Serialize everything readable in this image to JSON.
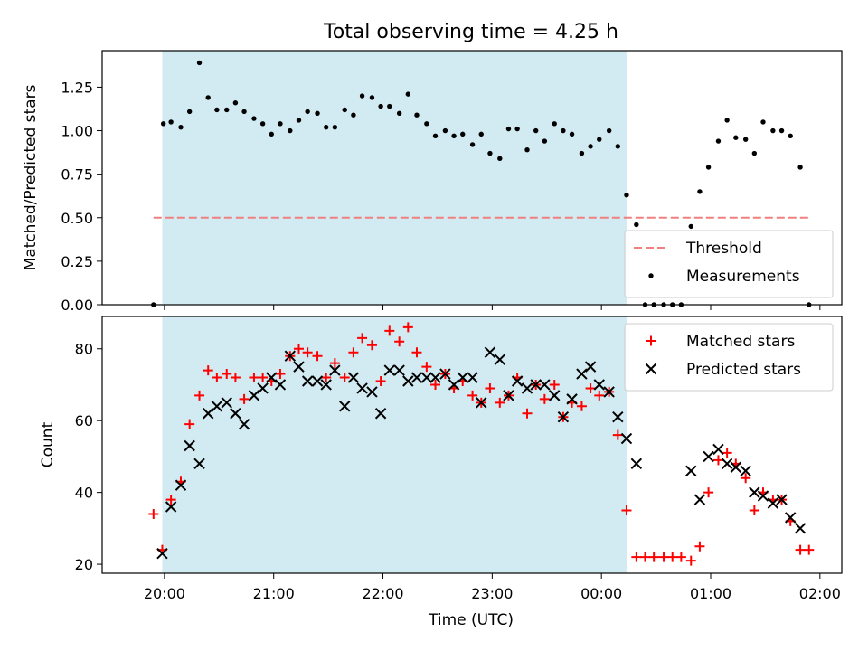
{
  "chart_data": {
    "title": "Total observing time = 4.25 h",
    "xlabel": "Time (UTC)",
    "x_unit": "hours since 00:00 UTC (values past midnight continue beyond 24)",
    "xlim": [
      19.43,
      26.2
    ],
    "xticks": [
      {
        "x": 20,
        "label": "20:00"
      },
      {
        "x": 21,
        "label": "21:00"
      },
      {
        "x": 22,
        "label": "22:00"
      },
      {
        "x": 23,
        "label": "23:00"
      },
      {
        "x": 24,
        "label": "00:00"
      },
      {
        "x": 25,
        "label": "01:00"
      },
      {
        "x": 26,
        "label": "02:00"
      }
    ],
    "shaded_interval": [
      19.98,
      24.23
    ],
    "shade_color": "#add8e6",
    "panels": [
      {
        "type": "scatter",
        "ylabel": "Matched/Predicted stars",
        "ylim": [
          0,
          1.46
        ],
        "yticks": [
          0.0,
          0.25,
          0.5,
          0.75,
          1.0,
          1.25
        ],
        "ytick_labels": [
          "0.00",
          "0.25",
          "0.50",
          "0.75",
          "1.00",
          "1.25"
        ],
        "legend_position": "lower-right",
        "series": [
          {
            "name": "Threshold",
            "kind": "dashed-line",
            "color": "#f08080",
            "x": [
              19.9,
              25.9
            ],
            "y": [
              0.5,
              0.5
            ]
          },
          {
            "name": "Measurements",
            "kind": "dot",
            "color": "#000000",
            "points": [
              [
                19.9,
                0.0
              ],
              [
                19.99,
                1.04
              ],
              [
                20.06,
                1.05
              ],
              [
                20.15,
                1.02
              ],
              [
                20.23,
                1.11
              ],
              [
                20.32,
                1.39
              ],
              [
                20.4,
                1.19
              ],
              [
                20.48,
                1.12
              ],
              [
                20.57,
                1.12
              ],
              [
                20.65,
                1.16
              ],
              [
                20.73,
                1.11
              ],
              [
                20.82,
                1.07
              ],
              [
                20.9,
                1.04
              ],
              [
                20.98,
                0.98
              ],
              [
                21.06,
                1.04
              ],
              [
                21.15,
                1.0
              ],
              [
                21.23,
                1.06
              ],
              [
                21.31,
                1.11
              ],
              [
                21.4,
                1.1
              ],
              [
                21.48,
                1.02
              ],
              [
                21.56,
                1.02
              ],
              [
                21.65,
                1.12
              ],
              [
                21.73,
                1.09
              ],
              [
                21.81,
                1.2
              ],
              [
                21.9,
                1.19
              ],
              [
                21.98,
                1.14
              ],
              [
                22.06,
                1.14
              ],
              [
                22.15,
                1.1
              ],
              [
                22.23,
                1.21
              ],
              [
                22.31,
                1.09
              ],
              [
                22.4,
                1.04
              ],
              [
                22.48,
                0.97
              ],
              [
                22.57,
                1.0
              ],
              [
                22.65,
                0.97
              ],
              [
                22.73,
                0.98
              ],
              [
                22.82,
                0.92
              ],
              [
                22.9,
                0.98
              ],
              [
                22.98,
                0.87
              ],
              [
                23.07,
                0.84
              ],
              [
                23.15,
                1.01
              ],
              [
                23.23,
                1.01
              ],
              [
                23.32,
                0.89
              ],
              [
                23.4,
                1.0
              ],
              [
                23.48,
                0.94
              ],
              [
                23.57,
                1.04
              ],
              [
                23.65,
                1.0
              ],
              [
                23.73,
                0.98
              ],
              [
                23.82,
                0.87
              ],
              [
                23.9,
                0.91
              ],
              [
                23.98,
                0.95
              ],
              [
                24.07,
                1.0
              ],
              [
                24.15,
                0.91
              ],
              [
                24.23,
                0.63
              ],
              [
                24.32,
                0.46
              ],
              [
                24.4,
                0.0
              ],
              [
                24.48,
                0.0
              ],
              [
                24.57,
                0.0
              ],
              [
                24.65,
                0.0
              ],
              [
                24.73,
                0.0
              ],
              [
                24.82,
                0.45
              ],
              [
                24.9,
                0.65
              ],
              [
                24.98,
                0.79
              ],
              [
                25.07,
                0.94
              ],
              [
                25.15,
                1.06
              ],
              [
                25.23,
                0.96
              ],
              [
                25.32,
                0.95
              ],
              [
                25.4,
                0.87
              ],
              [
                25.48,
                1.05
              ],
              [
                25.57,
                1.0
              ],
              [
                25.65,
                1.0
              ],
              [
                25.73,
                0.97
              ],
              [
                25.82,
                0.79
              ],
              [
                25.9,
                0.0
              ]
            ]
          }
        ]
      },
      {
        "type": "scatter",
        "ylabel": "Count",
        "ylim": [
          17.5,
          89
        ],
        "yticks": [
          20,
          40,
          60,
          80
        ],
        "ytick_labels": [
          "20",
          "40",
          "60",
          "80"
        ],
        "legend_position": "upper-right",
        "series": [
          {
            "name": "Matched stars",
            "kind": "plus",
            "color": "#ff0000",
            "points": [
              [
                19.9,
                34
              ],
              [
                19.98,
                24
              ],
              [
                20.06,
                38
              ],
              [
                20.15,
                43
              ],
              [
                20.23,
                59
              ],
              [
                20.32,
                67
              ],
              [
                20.4,
                74
              ],
              [
                20.48,
                72
              ],
              [
                20.57,
                73
              ],
              [
                20.65,
                72
              ],
              [
                20.73,
                66
              ],
              [
                20.82,
                72
              ],
              [
                20.9,
                72
              ],
              [
                20.98,
                71
              ],
              [
                21.06,
                73
              ],
              [
                21.15,
                78
              ],
              [
                21.23,
                80
              ],
              [
                21.31,
                79
              ],
              [
                21.4,
                78
              ],
              [
                21.48,
                72
              ],
              [
                21.56,
                76
              ],
              [
                21.65,
                72
              ],
              [
                21.73,
                79
              ],
              [
                21.81,
                83
              ],
              [
                21.9,
                81
              ],
              [
                21.98,
                71
              ],
              [
                22.06,
                85
              ],
              [
                22.15,
                82
              ],
              [
                22.23,
                86
              ],
              [
                22.31,
                79
              ],
              [
                22.4,
                75
              ],
              [
                22.48,
                70
              ],
              [
                22.57,
                73
              ],
              [
                22.65,
                69
              ],
              [
                22.73,
                71
              ],
              [
                22.82,
                67
              ],
              [
                22.9,
                65
              ],
              [
                22.98,
                69
              ],
              [
                23.07,
                65
              ],
              [
                23.15,
                67
              ],
              [
                23.23,
                72
              ],
              [
                23.32,
                62
              ],
              [
                23.4,
                70
              ],
              [
                23.48,
                66
              ],
              [
                23.57,
                70
              ],
              [
                23.65,
                61
              ],
              [
                23.73,
                65
              ],
              [
                23.82,
                64
              ],
              [
                23.9,
                69
              ],
              [
                23.98,
                67
              ],
              [
                24.07,
                68
              ],
              [
                24.15,
                56
              ],
              [
                24.23,
                35
              ],
              [
                24.32,
                22
              ],
              [
                24.4,
                22
              ],
              [
                24.48,
                22
              ],
              [
                24.57,
                22
              ],
              [
                24.65,
                22
              ],
              [
                24.73,
                22
              ],
              [
                24.82,
                21
              ],
              [
                24.9,
                25
              ],
              [
                24.98,
                40
              ],
              [
                25.07,
                49
              ],
              [
                25.15,
                51
              ],
              [
                25.23,
                48
              ],
              [
                25.32,
                44
              ],
              [
                25.4,
                35
              ],
              [
                25.48,
                40
              ],
              [
                25.57,
                38
              ],
              [
                25.65,
                38
              ],
              [
                25.73,
                32
              ],
              [
                25.82,
                24
              ],
              [
                25.9,
                24
              ]
            ]
          },
          {
            "name": "Predicted stars",
            "kind": "x",
            "color": "#000000",
            "points": [
              [
                19.98,
                23
              ],
              [
                20.06,
                36
              ],
              [
                20.15,
                42
              ],
              [
                20.23,
                53
              ],
              [
                20.32,
                48
              ],
              [
                20.4,
                62
              ],
              [
                20.48,
                64
              ],
              [
                20.57,
                65
              ],
              [
                20.65,
                62
              ],
              [
                20.73,
                59
              ],
              [
                20.82,
                67
              ],
              [
                20.9,
                69
              ],
              [
                20.98,
                72
              ],
              [
                21.06,
                70
              ],
              [
                21.15,
                78
              ],
              [
                21.23,
                75
              ],
              [
                21.31,
                71
              ],
              [
                21.4,
                71
              ],
              [
                21.48,
                70
              ],
              [
                21.56,
                74
              ],
              [
                21.65,
                64
              ],
              [
                21.73,
                72
              ],
              [
                21.81,
                69
              ],
              [
                21.9,
                68
              ],
              [
                21.98,
                62
              ],
              [
                22.06,
                74
              ],
              [
                22.15,
                74
              ],
              [
                22.23,
                71
              ],
              [
                22.31,
                72
              ],
              [
                22.4,
                72
              ],
              [
                22.48,
                72
              ],
              [
                22.57,
                73
              ],
              [
                22.65,
                70
              ],
              [
                22.73,
                72
              ],
              [
                22.82,
                72
              ],
              [
                22.9,
                65
              ],
              [
                22.98,
                79
              ],
              [
                23.07,
                77
              ],
              [
                23.15,
                67
              ],
              [
                23.23,
                71
              ],
              [
                23.32,
                69
              ],
              [
                23.4,
                70
              ],
              [
                23.48,
                70
              ],
              [
                23.57,
                67
              ],
              [
                23.65,
                61
              ],
              [
                23.73,
                66
              ],
              [
                23.82,
                73
              ],
              [
                23.9,
                75
              ],
              [
                23.98,
                70
              ],
              [
                24.07,
                68
              ],
              [
                24.15,
                61
              ],
              [
                24.23,
                55
              ],
              [
                24.32,
                48
              ],
              [
                24.82,
                46
              ],
              [
                24.9,
                38
              ],
              [
                24.98,
                50
              ],
              [
                25.07,
                52
              ],
              [
                25.15,
                48
              ],
              [
                25.23,
                47
              ],
              [
                25.32,
                46
              ],
              [
                25.4,
                40
              ],
              [
                25.48,
                39
              ],
              [
                25.57,
                37
              ],
              [
                25.65,
                38
              ],
              [
                25.73,
                33
              ],
              [
                25.82,
                30
              ]
            ]
          }
        ]
      }
    ]
  }
}
